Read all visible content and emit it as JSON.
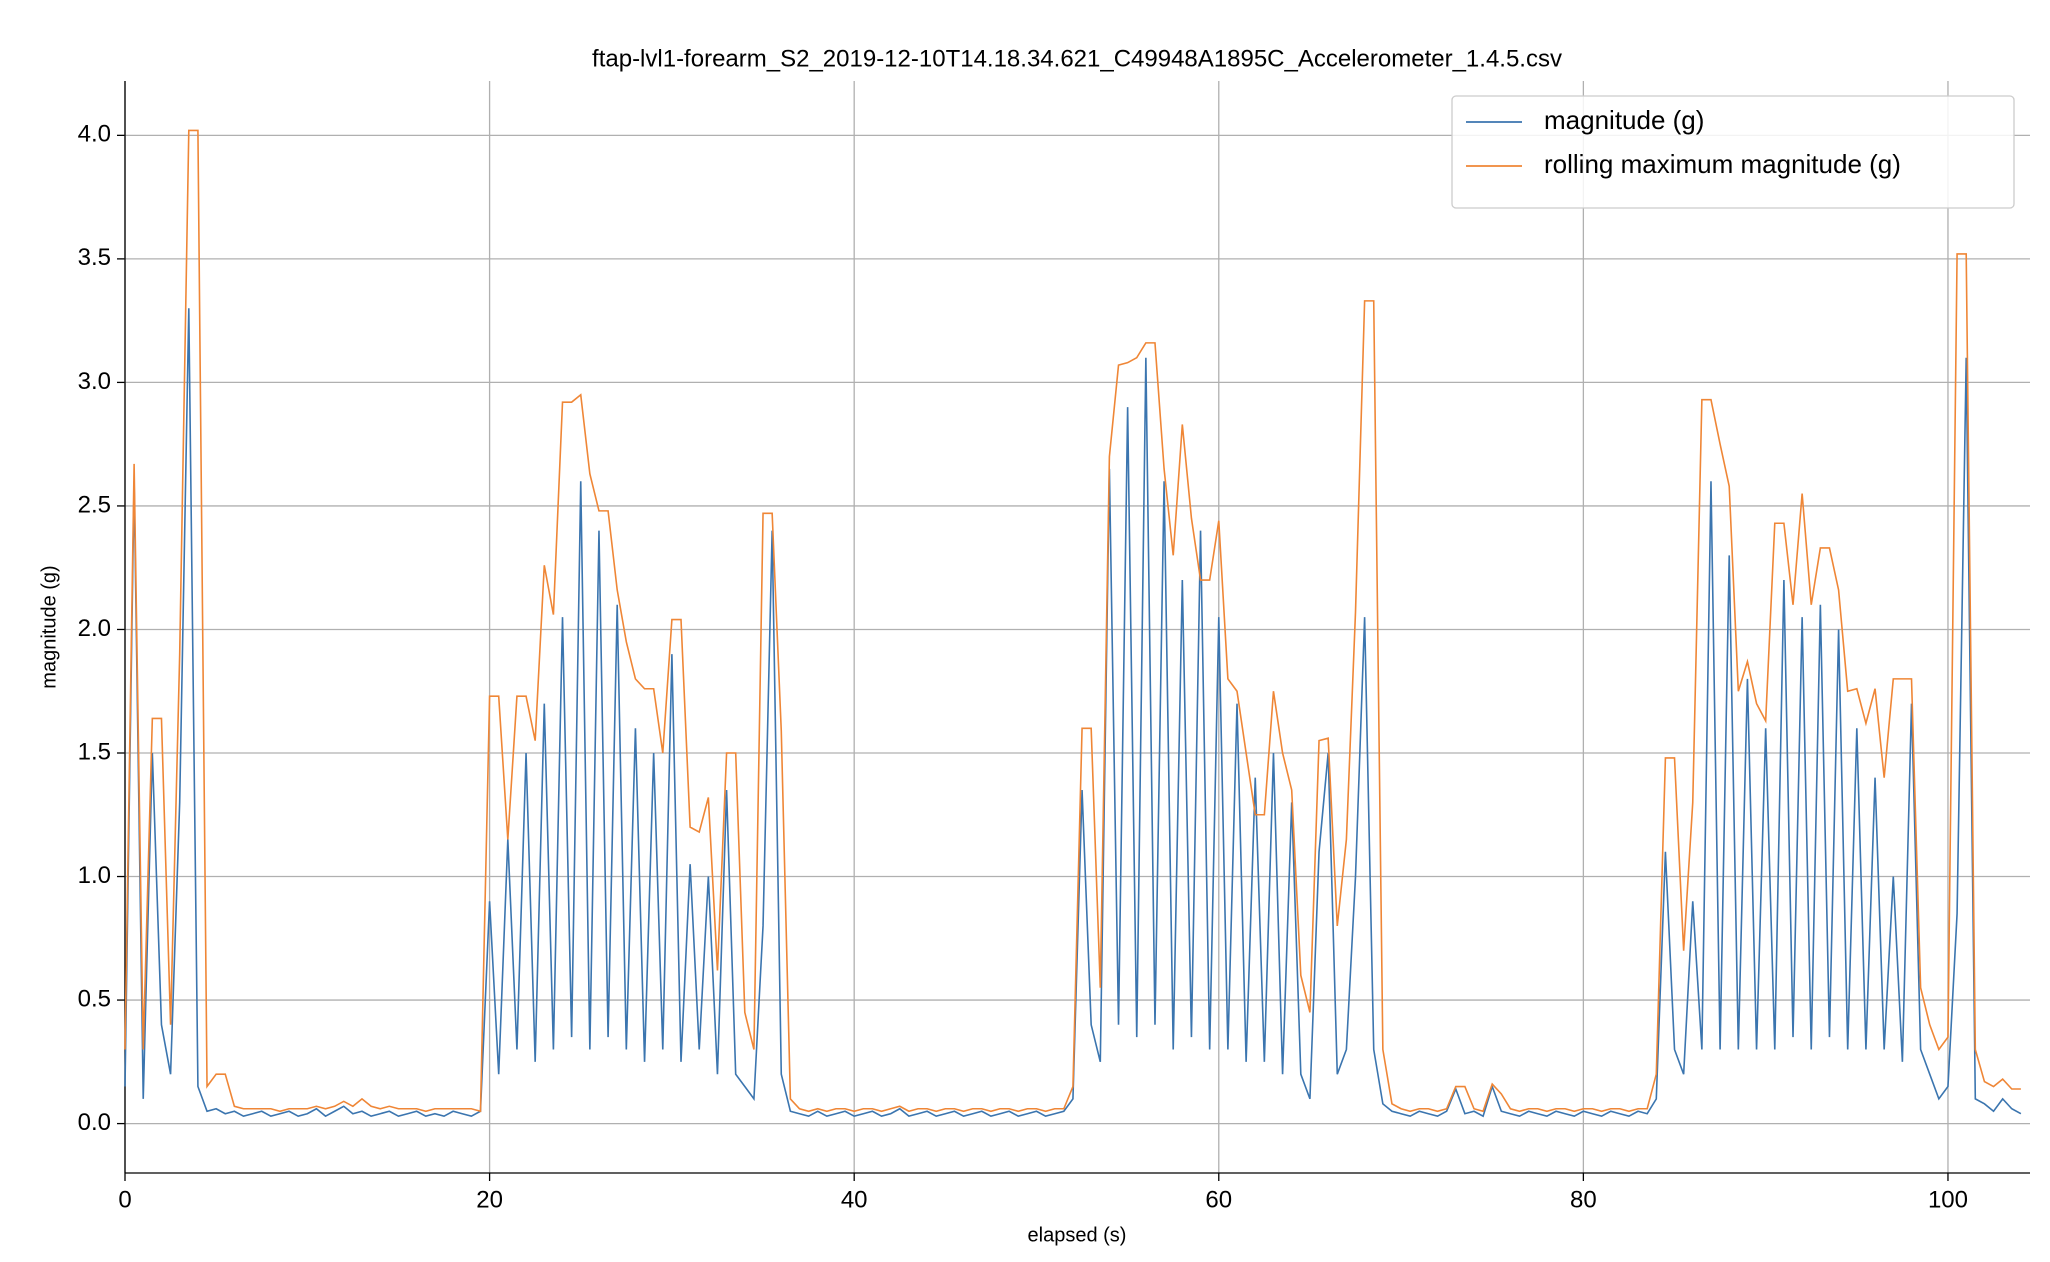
{
  "chart_data": {
    "type": "line",
    "title": "ftap-lvl1-forearm_S2_2019-12-10T14.18.34.621_C49948A1895C_Accelerometer_1.4.5.csv",
    "xlabel": "elapsed (s)",
    "ylabel": "magnitude (g)",
    "x": [
      0,
      0.5,
      1,
      1.5,
      2,
      2.5,
      3,
      3.5,
      4,
      4.5,
      5,
      5.5,
      6,
      6.5,
      7,
      7.5,
      8,
      8.5,
      9,
      9.5,
      10,
      10.5,
      11,
      11.5,
      12,
      12.5,
      13,
      13.5,
      14,
      14.5,
      15,
      15.5,
      16,
      16.5,
      17,
      17.5,
      18,
      18.5,
      19,
      19.5,
      20,
      20.5,
      21,
      21.5,
      22,
      22.5,
      23,
      23.5,
      24,
      24.5,
      25,
      25.5,
      26,
      26.5,
      27,
      27.5,
      28,
      28.5,
      29,
      29.5,
      30,
      30.5,
      31,
      31.5,
      32,
      32.5,
      33,
      33.5,
      34,
      34.5,
      35,
      35.5,
      36,
      36.5,
      37,
      37.5,
      38,
      38.5,
      39,
      39.5,
      40,
      40.5,
      41,
      41.5,
      42,
      42.5,
      43,
      43.5,
      44,
      44.5,
      45,
      45.5,
      46,
      46.5,
      47,
      47.5,
      48,
      48.5,
      49,
      49.5,
      50,
      50.5,
      51,
      51.5,
      52,
      52.5,
      53,
      53.5,
      54,
      54.5,
      55,
      55.5,
      56,
      56.5,
      57,
      57.5,
      58,
      58.5,
      59,
      59.5,
      60,
      60.5,
      61,
      61.5,
      62,
      62.5,
      63,
      63.5,
      64,
      64.5,
      65,
      65.5,
      66,
      66.5,
      67,
      67.5,
      68,
      68.5,
      69,
      69.5,
      70,
      70.5,
      71,
      71.5,
      72,
      72.5,
      73,
      73.5,
      74,
      74.5,
      75,
      75.5,
      76,
      76.5,
      77,
      77.5,
      78,
      78.5,
      79,
      79.5,
      80,
      80.5,
      81,
      81.5,
      82,
      82.5,
      83,
      83.5,
      84,
      84.5,
      85,
      85.5,
      86,
      86.5,
      87,
      87.5,
      88,
      88.5,
      89,
      89.5,
      90,
      90.5,
      91,
      91.5,
      92,
      92.5,
      93,
      93.5,
      94,
      94.5,
      95,
      95.5,
      96,
      96.5,
      97,
      97.5,
      98,
      98.5,
      99,
      99.5,
      100,
      100.5,
      101,
      101.5,
      102,
      102.5,
      103,
      103.5,
      104
    ],
    "series": [
      {
        "name": "magnitude (g)",
        "color": "#3b75af",
        "values": [
          0.15,
          2.6,
          0.1,
          1.5,
          0.4,
          0.2,
          1.3,
          3.3,
          0.15,
          0.05,
          0.06,
          0.04,
          0.05,
          0.03,
          0.04,
          0.05,
          0.03,
          0.04,
          0.05,
          0.03,
          0.04,
          0.06,
          0.03,
          0.05,
          0.07,
          0.04,
          0.05,
          0.03,
          0.04,
          0.05,
          0.03,
          0.04,
          0.05,
          0.03,
          0.04,
          0.03,
          0.05,
          0.04,
          0.03,
          0.05,
          0.9,
          0.2,
          1.15,
          0.3,
          1.5,
          0.25,
          1.7,
          0.3,
          2.05,
          0.35,
          2.6,
          0.3,
          2.4,
          0.35,
          2.1,
          0.3,
          1.6,
          0.25,
          1.5,
          0.3,
          1.9,
          0.25,
          1.05,
          0.3,
          1.0,
          0.2,
          1.35,
          0.2,
          0.15,
          0.1,
          0.8,
          2.4,
          0.2,
          0.05,
          0.04,
          0.03,
          0.05,
          0.03,
          0.04,
          0.05,
          0.03,
          0.04,
          0.05,
          0.03,
          0.04,
          0.06,
          0.03,
          0.04,
          0.05,
          0.03,
          0.04,
          0.05,
          0.03,
          0.04,
          0.05,
          0.03,
          0.04,
          0.05,
          0.03,
          0.04,
          0.05,
          0.03,
          0.04,
          0.05,
          0.1,
          1.35,
          0.4,
          0.25,
          2.65,
          0.4,
          2.9,
          0.35,
          3.1,
          0.4,
          2.6,
          0.3,
          2.2,
          0.35,
          2.4,
          0.3,
          2.05,
          0.3,
          1.7,
          0.25,
          1.4,
          0.25,
          1.5,
          0.2,
          1.3,
          0.2,
          0.1,
          1.1,
          1.5,
          0.2,
          0.3,
          1.0,
          2.05,
          0.3,
          0.08,
          0.05,
          0.04,
          0.03,
          0.05,
          0.04,
          0.03,
          0.05,
          0.14,
          0.04,
          0.05,
          0.03,
          0.15,
          0.05,
          0.04,
          0.03,
          0.05,
          0.04,
          0.03,
          0.05,
          0.04,
          0.03,
          0.05,
          0.04,
          0.03,
          0.05,
          0.04,
          0.03,
          0.05,
          0.04,
          0.1,
          1.1,
          0.3,
          0.2,
          0.9,
          0.3,
          2.6,
          0.3,
          2.3,
          0.3,
          1.8,
          0.3,
          1.6,
          0.3,
          2.2,
          0.35,
          2.05,
          0.3,
          2.1,
          0.35,
          2.0,
          0.3,
          1.6,
          0.3,
          1.4,
          0.3,
          1.0,
          0.25,
          1.7,
          0.3,
          0.2,
          0.1,
          0.15,
          0.85,
          3.1,
          0.1,
          0.08,
          0.05,
          0.1,
          0.06,
          0.04
        ]
      },
      {
        "name": "rolling maximum magnitude (g)",
        "color": "#ef8636",
        "values": [
          0.3,
          2.67,
          0.3,
          1.64,
          1.64,
          0.4,
          1.9,
          4.02,
          4.02,
          0.15,
          0.2,
          0.2,
          0.07,
          0.06,
          0.06,
          0.06,
          0.06,
          0.05,
          0.06,
          0.06,
          0.06,
          0.07,
          0.06,
          0.07,
          0.09,
          0.07,
          0.1,
          0.07,
          0.06,
          0.07,
          0.06,
          0.06,
          0.06,
          0.05,
          0.06,
          0.06,
          0.06,
          0.06,
          0.06,
          0.05,
          1.73,
          1.73,
          1.15,
          1.73,
          1.73,
          1.55,
          2.26,
          2.06,
          2.92,
          2.92,
          2.95,
          2.63,
          2.48,
          2.48,
          2.16,
          1.95,
          1.8,
          1.76,
          1.76,
          1.5,
          2.04,
          2.04,
          1.2,
          1.18,
          1.32,
          0.62,
          1.5,
          1.5,
          0.45,
          0.3,
          2.47,
          2.47,
          1.59,
          0.1,
          0.06,
          0.05,
          0.06,
          0.05,
          0.06,
          0.06,
          0.05,
          0.06,
          0.06,
          0.05,
          0.06,
          0.07,
          0.05,
          0.06,
          0.06,
          0.05,
          0.06,
          0.06,
          0.05,
          0.06,
          0.06,
          0.05,
          0.06,
          0.06,
          0.05,
          0.06,
          0.06,
          0.05,
          0.06,
          0.06,
          0.15,
          1.6,
          1.6,
          0.55,
          2.7,
          3.07,
          3.08,
          3.1,
          3.16,
          3.16,
          2.65,
          2.3,
          2.83,
          2.45,
          2.2,
          2.2,
          2.44,
          1.8,
          1.75,
          1.5,
          1.25,
          1.25,
          1.75,
          1.5,
          1.35,
          0.6,
          0.45,
          1.55,
          1.56,
          0.8,
          1.15,
          2.07,
          3.33,
          3.33,
          0.3,
          0.08,
          0.06,
          0.05,
          0.06,
          0.06,
          0.05,
          0.06,
          0.15,
          0.15,
          0.06,
          0.05,
          0.16,
          0.12,
          0.06,
          0.05,
          0.06,
          0.06,
          0.05,
          0.06,
          0.06,
          0.05,
          0.06,
          0.06,
          0.05,
          0.06,
          0.06,
          0.05,
          0.06,
          0.06,
          0.2,
          1.48,
          1.48,
          0.7,
          1.3,
          2.93,
          2.93,
          2.75,
          2.58,
          1.75,
          1.87,
          1.7,
          1.63,
          2.43,
          2.43,
          2.1,
          2.55,
          2.1,
          2.33,
          2.33,
          2.16,
          1.75,
          1.76,
          1.62,
          1.76,
          1.4,
          1.8,
          1.8,
          1.8,
          0.55,
          0.4,
          0.3,
          0.35,
          3.52,
          3.52,
          0.3,
          0.17,
          0.15,
          0.18,
          0.14,
          0.14
        ]
      }
    ],
    "xlim": [
      0,
      104.5
    ],
    "xticks": [
      0,
      20,
      40,
      60,
      80,
      100
    ],
    "ylim": [
      -0.2,
      4.22
    ],
    "yticks": [
      {
        "value": 0,
        "label": "0.0"
      },
      0.5,
      {
        "value": 1,
        "label": "1.0"
      },
      1.5,
      {
        "value": 2,
        "label": "2.0"
      },
      2.5,
      {
        "value": 3,
        "label": "3.0"
      },
      3.5,
      {
        "value": 4,
        "label": "4.0"
      }
    ],
    "grid": true,
    "legend": "upper right"
  }
}
